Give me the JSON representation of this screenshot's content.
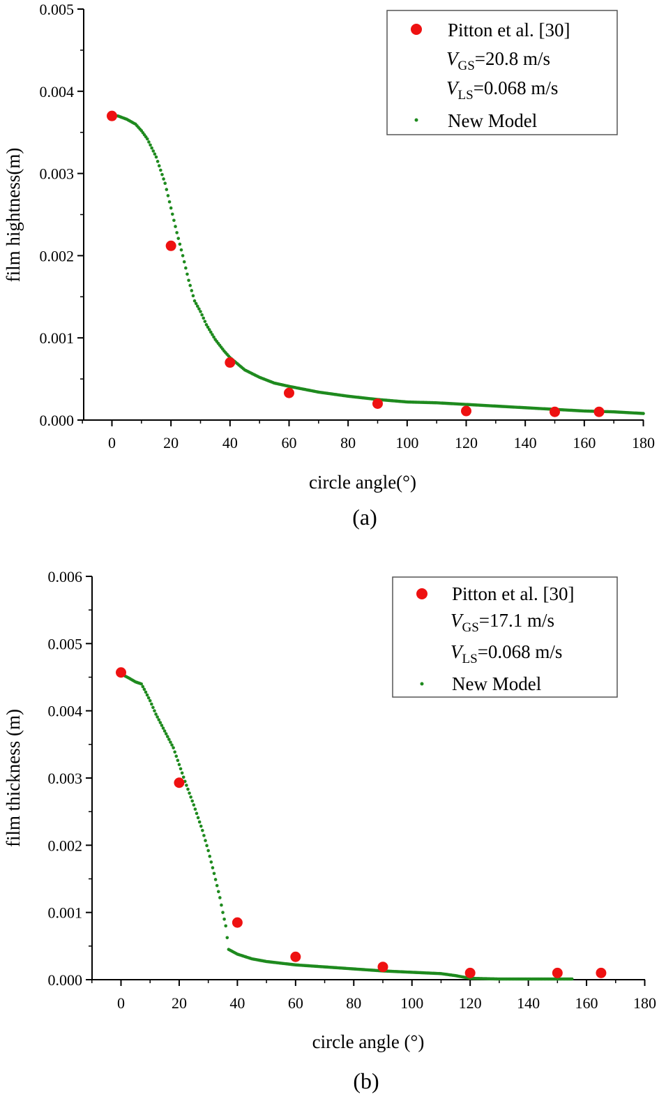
{
  "colors": {
    "measured": "#ee1111",
    "model": "#1e8a1e",
    "axis": "#000000",
    "legend_border": "#555555"
  },
  "chart_data": [
    {
      "type": "scatter",
      "panel_label": "(a)",
      "xlabel": "circle angle(°)",
      "ylabel": "film hightness(m)",
      "xlim": [
        -10,
        180
      ],
      "ylim": [
        0,
        0.005
      ],
      "xticks": [
        0,
        20,
        40,
        60,
        80,
        100,
        120,
        140,
        160,
        180
      ],
      "yticks": [
        0.0,
        0.001,
        0.002,
        0.003,
        0.004,
        0.005
      ],
      "ytick_labels": [
        "0.000",
        "0.001",
        "0.002",
        "0.003",
        "0.004",
        "0.005"
      ],
      "legend": {
        "measured_label": "Pitton et al.  [30]",
        "vgs_var": "V",
        "vgs_sub": "GS",
        "vgs_value": "=20.8 m/s",
        "vls_var": "V",
        "vls_sub": "LS",
        "vls_value": "=0.068 m/s",
        "model_label": "New Model"
      },
      "series": [
        {
          "name": "Pitton et al. [30]",
          "kind": "measured",
          "x": [
            0,
            20,
            40,
            60,
            90,
            120,
            150,
            165
          ],
          "y": [
            0.0037,
            0.00212,
            0.0007,
            0.00033,
            0.0002,
            0.00011,
            0.0001,
            0.0001
          ]
        },
        {
          "name": "New Model",
          "kind": "model",
          "x": [
            0,
            2,
            5,
            8,
            10,
            12,
            15,
            18,
            20,
            22,
            24,
            26,
            28,
            30,
            32,
            35,
            38,
            40,
            45,
            50,
            55,
            60,
            70,
            80,
            90,
            100,
            110,
            120,
            130,
            140,
            150,
            160,
            170,
            180
          ],
          "y": [
            0.0037,
            0.0037,
            0.00366,
            0.0036,
            0.00352,
            0.00342,
            0.0032,
            0.00288,
            0.00258,
            0.00228,
            0.002,
            0.0017,
            0.00145,
            0.00132,
            0.00116,
            0.00098,
            0.00084,
            0.00076,
            0.00061,
            0.00052,
            0.00045,
            0.00041,
            0.00034,
            0.00029,
            0.00025,
            0.00022,
            0.00021,
            0.00019,
            0.00017,
            0.00015,
            0.00013,
            0.00011,
            0.0001,
            8e-05
          ]
        }
      ]
    },
    {
      "type": "scatter",
      "panel_label": "(b)",
      "xlabel": "circle angle (°)",
      "ylabel": "film thickness (m)",
      "xlim": [
        -10,
        180
      ],
      "ylim": [
        0,
        0.006
      ],
      "xticks": [
        0,
        20,
        40,
        60,
        80,
        100,
        120,
        140,
        160,
        180
      ],
      "yticks": [
        0.0,
        0.001,
        0.002,
        0.003,
        0.004,
        0.005,
        0.006
      ],
      "ytick_labels": [
        "0.000",
        "0.001",
        "0.002",
        "0.003",
        "0.004",
        "0.005",
        "0.006"
      ],
      "legend": {
        "measured_label": "Pitton et al.  [30]",
        "vgs_var": "V",
        "vgs_sub": "GS",
        "vgs_value": "=17.1 m/s",
        "vls_var": "V",
        "vls_sub": "LS",
        "vls_value": "=0.068 m/s",
        "model_label": "New Model"
      },
      "series": [
        {
          "name": "Pitton et al. [30]",
          "kind": "measured",
          "x": [
            0,
            20,
            40,
            60,
            90,
            120,
            150,
            165
          ],
          "y": [
            0.00457,
            0.00293,
            0.00085,
            0.00034,
            0.00019,
            0.0001,
            0.0001,
            0.0001
          ]
        },
        {
          "name": "New Model",
          "kind": "model",
          "x": [
            0,
            3,
            5,
            7,
            8,
            10,
            12,
            15,
            18,
            20,
            22,
            25,
            28,
            30,
            32,
            34,
            35,
            36,
            37,
            40,
            45,
            50,
            60,
            70,
            80,
            90,
            100,
            110,
            115,
            120,
            130,
            140,
            150,
            155
          ],
          "y": [
            0.00455,
            0.00448,
            0.00443,
            0.0044,
            0.00432,
            0.00415,
            0.00395,
            0.0037,
            0.00345,
            0.0032,
            0.00295,
            0.0026,
            0.00222,
            0.00192,
            0.00158,
            0.00122,
            0.001,
            0.0008,
            0.00045,
            0.00038,
            0.00031,
            0.00027,
            0.00022,
            0.00019,
            0.00016,
            0.00013,
            0.00011,
            9e-05,
            6e-05,
            2e-05,
            1e-05,
            1e-05,
            1e-05,
            1e-05
          ]
        }
      ]
    }
  ]
}
